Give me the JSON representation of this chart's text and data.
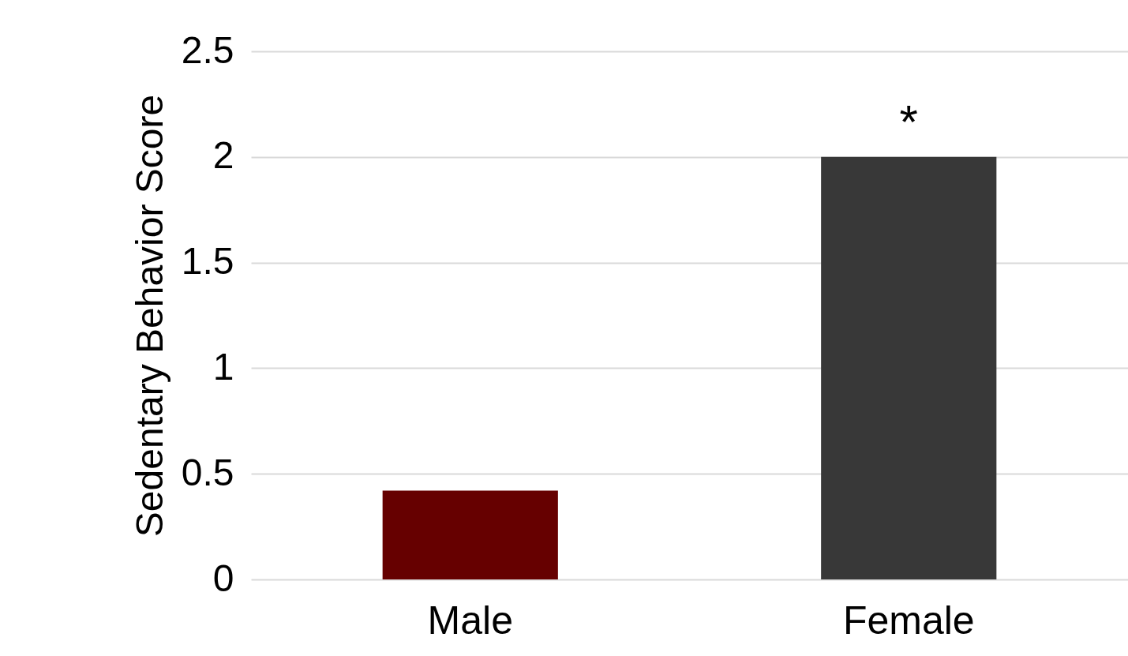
{
  "chart_data": {
    "type": "bar",
    "ylabel": "Sedentary Behavior Score",
    "categories": [
      "Male",
      "Female"
    ],
    "values": [
      0.42,
      2.0
    ],
    "colors": [
      "#660000",
      "#383838"
    ],
    "ylim": [
      0,
      2.5
    ],
    "yticks": [
      0,
      0.5,
      1,
      1.5,
      2,
      2.5
    ],
    "grid": "y",
    "annotations": [
      {
        "text": "*",
        "x": "Female",
        "y": 2.0
      }
    ]
  }
}
